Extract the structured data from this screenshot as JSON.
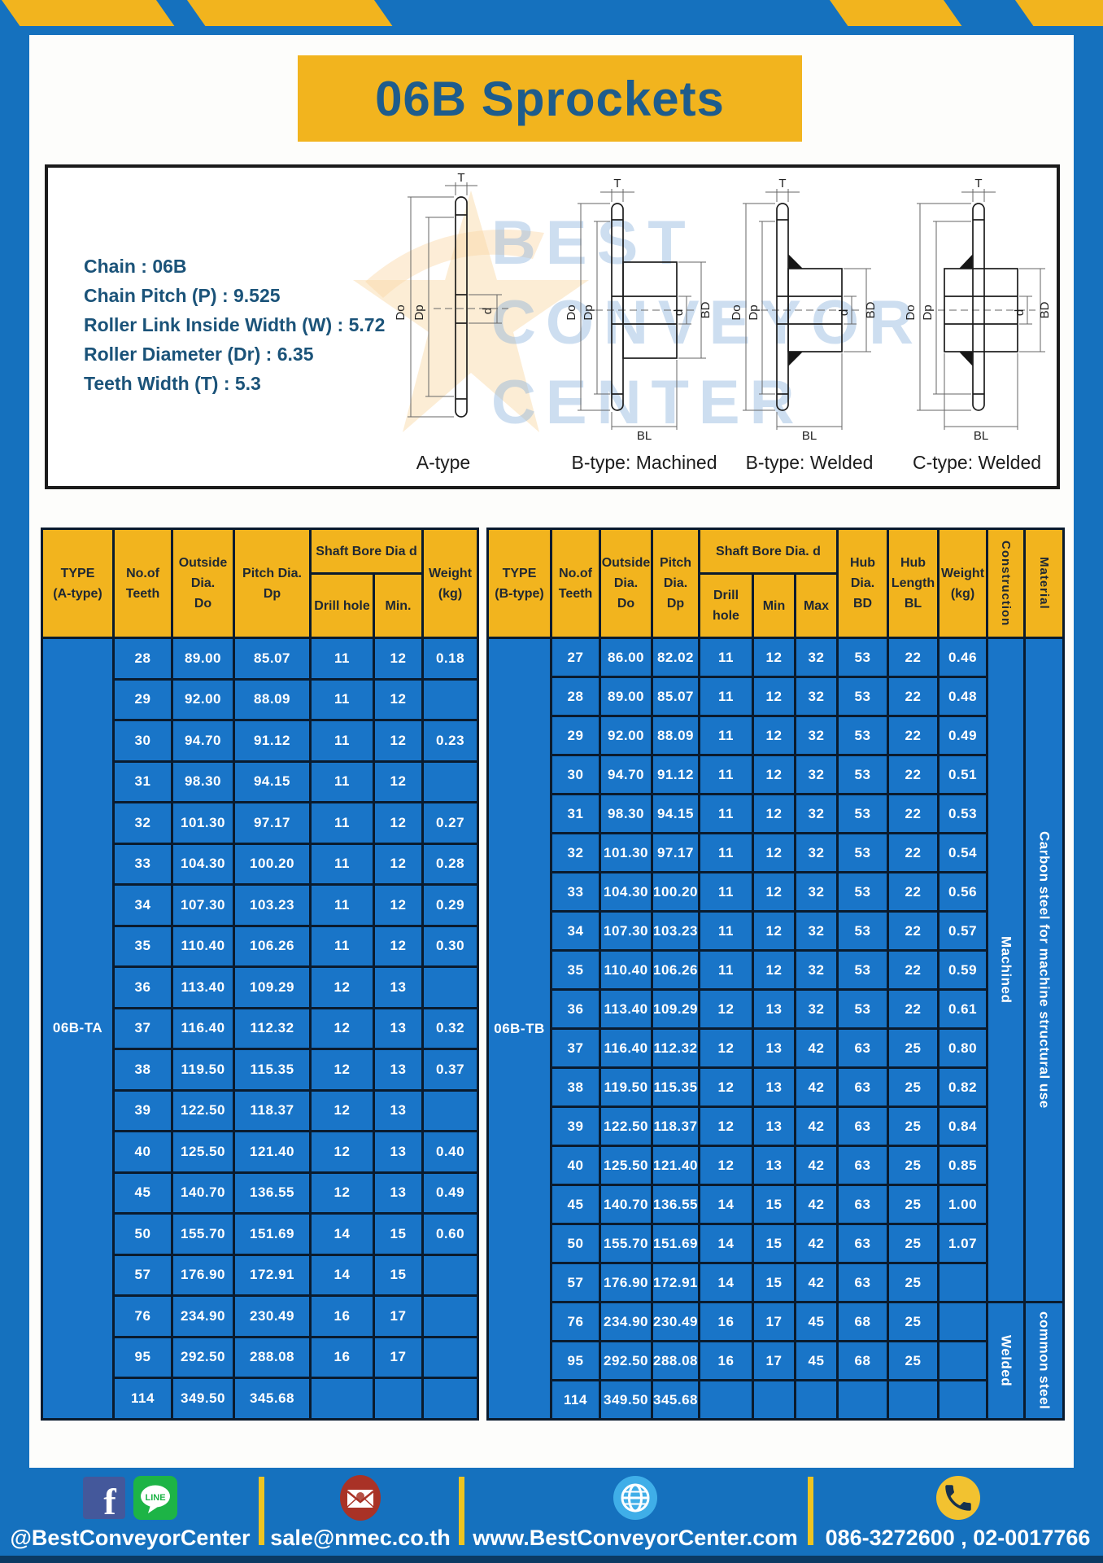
{
  "page": {
    "title": "06B Sprockets"
  },
  "infobox": {
    "specs": [
      {
        "label": "Chain",
        "value": "06B"
      },
      {
        "label": "Chain Pitch (P)",
        "value": "9.525"
      },
      {
        "label": "Roller Link Inside Width (W)",
        "value": "5.72"
      },
      {
        "label": "Roller Diameter (Dr)",
        "value": "6.35"
      },
      {
        "label": "Teeth Width (T)",
        "value": "5.3"
      }
    ]
  },
  "diagram": {
    "captions": [
      "A-type",
      "B-type: Machined",
      "B-type: Welded",
      "C-type: Welded"
    ],
    "dims": {
      "t": "T",
      "outside": "Do",
      "pitch": "Dp",
      "bore": "d",
      "hub": "BD",
      "hublen": "BL"
    },
    "watermark_lines": [
      "BEST",
      "CONVEYOR",
      "CENTER"
    ]
  },
  "table_a": {
    "h": {
      "type1": "TYPE",
      "type2": "(A-type)",
      "teeth1": "No.of",
      "teeth2": "Teeth",
      "od1": "Outside",
      "od2": "Dia.",
      "od3": "Do",
      "pd1": "Pitch Dia.",
      "pd2": "Dp",
      "bore": "Shaft Bore Dia d",
      "drill": "Drill hole",
      "min": "Min.",
      "w1": "Weight",
      "w2": "(kg)"
    },
    "type_value": "06B-TA",
    "rows": [
      [
        "28",
        "89.00",
        "85.07",
        "11",
        "12",
        "0.18"
      ],
      [
        "29",
        "92.00",
        "88.09",
        "11",
        "12",
        ""
      ],
      [
        "30",
        "94.70",
        "91.12",
        "11",
        "12",
        "0.23"
      ],
      [
        "31",
        "98.30",
        "94.15",
        "11",
        "12",
        ""
      ],
      [
        "32",
        "101.30",
        "97.17",
        "11",
        "12",
        "0.27"
      ],
      [
        "33",
        "104.30",
        "100.20",
        "11",
        "12",
        "0.28"
      ],
      [
        "34",
        "107.30",
        "103.23",
        "11",
        "12",
        "0.29"
      ],
      [
        "35",
        "110.40",
        "106.26",
        "11",
        "12",
        "0.30"
      ],
      [
        "36",
        "113.40",
        "109.29",
        "12",
        "13",
        ""
      ],
      [
        "37",
        "116.40",
        "112.32",
        "12",
        "13",
        "0.32"
      ],
      [
        "38",
        "119.50",
        "115.35",
        "12",
        "13",
        "0.37"
      ],
      [
        "39",
        "122.50",
        "118.37",
        "12",
        "13",
        ""
      ],
      [
        "40",
        "125.50",
        "121.40",
        "12",
        "13",
        "0.40"
      ],
      [
        "45",
        "140.70",
        "136.55",
        "12",
        "13",
        "0.49"
      ],
      [
        "50",
        "155.70",
        "151.69",
        "14",
        "15",
        "0.60"
      ],
      [
        "57",
        "176.90",
        "172.91",
        "14",
        "15",
        ""
      ],
      [
        "76",
        "234.90",
        "230.49",
        "16",
        "17",
        ""
      ],
      [
        "95",
        "292.50",
        "288.08",
        "16",
        "17",
        ""
      ],
      [
        "114",
        "349.50",
        "345.68",
        "",
        "",
        ""
      ]
    ]
  },
  "table_b": {
    "h": {
      "type1": "TYPE",
      "type2": "(B-type)",
      "teeth1": "No.of",
      "teeth2": "Teeth",
      "od1": "Outside",
      "od2": "Dia.",
      "od3": "Do",
      "pd1": "Pitch",
      "pd2": "Dia.",
      "pd3": "Dp",
      "bore": "Shaft Bore Dia. d",
      "drill": "Drill hole",
      "min": "Min",
      "max": "Max",
      "hd1": "Hub",
      "hd2": "Dia.",
      "hd3": "BD",
      "hl1": "Hub",
      "hl2": "Length",
      "hl3": "BL",
      "w1": "Weight",
      "w2": "(kg)",
      "construction": "Construction",
      "material": "Material"
    },
    "type_value": "06B-TB",
    "rows": [
      [
        "27",
        "86.00",
        "82.02",
        "11",
        "12",
        "32",
        "53",
        "22",
        "0.46"
      ],
      [
        "28",
        "89.00",
        "85.07",
        "11",
        "12",
        "32",
        "53",
        "22",
        "0.48"
      ],
      [
        "29",
        "92.00",
        "88.09",
        "11",
        "12",
        "32",
        "53",
        "22",
        "0.49"
      ],
      [
        "30",
        "94.70",
        "91.12",
        "11",
        "12",
        "32",
        "53",
        "22",
        "0.51"
      ],
      [
        "31",
        "98.30",
        "94.15",
        "11",
        "12",
        "32",
        "53",
        "22",
        "0.53"
      ],
      [
        "32",
        "101.30",
        "97.17",
        "11",
        "12",
        "32",
        "53",
        "22",
        "0.54"
      ],
      [
        "33",
        "104.30",
        "100.20",
        "11",
        "12",
        "32",
        "53",
        "22",
        "0.56"
      ],
      [
        "34",
        "107.30",
        "103.23",
        "11",
        "12",
        "32",
        "53",
        "22",
        "0.57"
      ],
      [
        "35",
        "110.40",
        "106.26",
        "11",
        "12",
        "32",
        "53",
        "22",
        "0.59"
      ],
      [
        "36",
        "113.40",
        "109.29",
        "12",
        "13",
        "32",
        "53",
        "22",
        "0.61"
      ],
      [
        "37",
        "116.40",
        "112.32",
        "12",
        "13",
        "42",
        "63",
        "25",
        "0.80"
      ],
      [
        "38",
        "119.50",
        "115.35",
        "12",
        "13",
        "42",
        "63",
        "25",
        "0.82"
      ],
      [
        "39",
        "122.50",
        "118.37",
        "12",
        "13",
        "42",
        "63",
        "25",
        "0.84"
      ],
      [
        "40",
        "125.50",
        "121.40",
        "12",
        "13",
        "42",
        "63",
        "25",
        "0.85"
      ],
      [
        "45",
        "140.70",
        "136.55",
        "14",
        "15",
        "42",
        "63",
        "25",
        "1.00"
      ],
      [
        "50",
        "155.70",
        "151.69",
        "14",
        "15",
        "42",
        "63",
        "25",
        "1.07"
      ],
      [
        "57",
        "176.90",
        "172.91",
        "14",
        "15",
        "42",
        "63",
        "25",
        ""
      ],
      [
        "76",
        "234.90",
        "230.49",
        "16",
        "17",
        "45",
        "68",
        "25",
        ""
      ],
      [
        "95",
        "292.50",
        "288.08",
        "16",
        "17",
        "45",
        "68",
        "25",
        ""
      ],
      [
        "114",
        "349.50",
        "345.68",
        "",
        "",
        "",
        "",
        "",
        ""
      ]
    ],
    "construction_blocks": [
      {
        "label": "Machined",
        "rows": 17
      },
      {
        "label": "Welded",
        "rows": 3
      }
    ],
    "material_blocks": [
      {
        "label": "Carbon steel for machine structural use",
        "rows": 17
      },
      {
        "label": "common steel",
        "rows": 3
      }
    ]
  },
  "footer": {
    "line_label": "LINE",
    "social_handle": "@BestConveyorCenter",
    "email": "sale@nmec.co.th",
    "website": "www.BestConveyorCenter.com",
    "phones": "086-3272600 , 02-0017766"
  },
  "colors": {
    "page_blue": "#1571BE",
    "cell_blue": "#1975C8",
    "accent_yellow": "#F2B41E",
    "title_text": "#1E5C8C",
    "border_dark": "#0A1B2E"
  }
}
